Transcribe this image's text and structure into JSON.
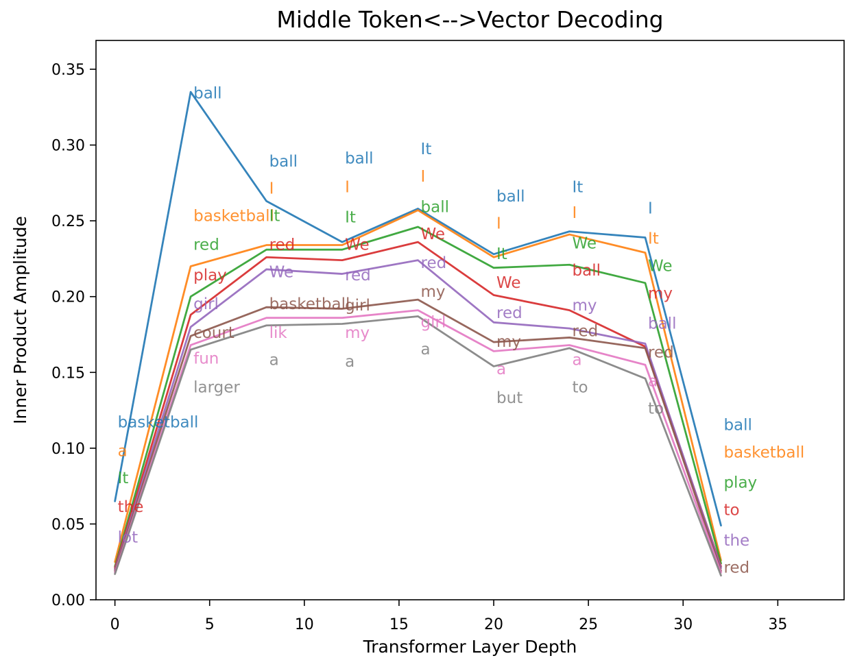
{
  "figure": {
    "title": "Middle Token<-->Vector Decoding",
    "xlabel": "Transformer Layer Depth",
    "ylabel": "Inner Product Amplitude"
  },
  "chart_data": {
    "type": "line",
    "title": "Middle Token<-->Vector Decoding",
    "xlabel": "Transformer Layer Depth",
    "ylabel": "Inner Product Amplitude",
    "grid": false,
    "legend": "none",
    "x": [
      0,
      4,
      8,
      12,
      16,
      20,
      24,
      28,
      32
    ],
    "xlim": [
      -1.0,
      38.5
    ],
    "ylim": [
      0,
      0.369
    ],
    "xticks": [
      "0",
      "5",
      "10",
      "15",
      "20",
      "25",
      "30",
      "35"
    ],
    "xtick_values": [
      0,
      5,
      10,
      15,
      20,
      25,
      30,
      35
    ],
    "yticks": [
      "0.00",
      "0.05",
      "0.10",
      "0.15",
      "0.20",
      "0.25",
      "0.30",
      "0.35"
    ],
    "ytick_values": [
      0.0,
      0.05,
      0.1,
      0.15,
      0.2,
      0.25,
      0.3,
      0.35
    ],
    "series": [
      {
        "name": "blue",
        "color": "#1f77b4",
        "values": [
          0.065,
          0.335,
          0.263,
          0.236,
          0.258,
          0.228,
          0.243,
          0.239,
          0.049
        ]
      },
      {
        "name": "orange",
        "color": "#ff7f0e",
        "values": [
          0.025,
          0.22,
          0.234,
          0.234,
          0.257,
          0.226,
          0.241,
          0.229,
          0.026
        ]
      },
      {
        "name": "green",
        "color": "#2ca02c",
        "values": [
          0.022,
          0.2,
          0.231,
          0.231,
          0.246,
          0.219,
          0.221,
          0.209,
          0.024
        ]
      },
      {
        "name": "red",
        "color": "#d62728",
        "values": [
          0.021,
          0.188,
          0.226,
          0.224,
          0.236,
          0.201,
          0.191,
          0.167,
          0.022
        ]
      },
      {
        "name": "purple",
        "color": "#9467bd",
        "values": [
          0.02,
          0.18,
          0.218,
          0.215,
          0.224,
          0.183,
          0.179,
          0.169,
          0.021
        ]
      },
      {
        "name": "brown",
        "color": "#8c564b",
        "values": [
          0.019,
          0.174,
          0.193,
          0.192,
          0.198,
          0.17,
          0.173,
          0.166,
          0.019
        ]
      },
      {
        "name": "pink",
        "color": "#e377c2",
        "values": [
          0.018,
          0.168,
          0.186,
          0.186,
          0.191,
          0.164,
          0.168,
          0.155,
          0.018
        ]
      },
      {
        "name": "gray",
        "color": "#7f7f7f",
        "values": [
          0.017,
          0.165,
          0.181,
          0.182,
          0.187,
          0.154,
          0.166,
          0.146,
          0.016
        ]
      }
    ],
    "annotations": [
      {
        "x": 0,
        "y": 0.117,
        "text": "basketball",
        "color": "#1f77b4"
      },
      {
        "x": 0,
        "y": 0.098,
        "text": "a",
        "color": "#ff7f0e"
      },
      {
        "x": 0,
        "y": 0.08,
        "text": "It",
        "color": "#2ca02c"
      },
      {
        "x": 0,
        "y": 0.061,
        "text": "the",
        "color": "#d62728"
      },
      {
        "x": 0,
        "y": 0.041,
        "text": "lot",
        "color": "#9467bd"
      },
      {
        "x": 4,
        "y": 0.334,
        "text": "ball",
        "color": "#1f77b4"
      },
      {
        "x": 4,
        "y": 0.253,
        "text": "basketball",
        "color": "#ff7f0e"
      },
      {
        "x": 4,
        "y": 0.234,
        "text": "red",
        "color": "#2ca02c"
      },
      {
        "x": 4,
        "y": 0.214,
        "text": "play",
        "color": "#d62728"
      },
      {
        "x": 4,
        "y": 0.195,
        "text": "girl",
        "color": "#9467bd"
      },
      {
        "x": 4,
        "y": 0.176,
        "text": "court",
        "color": "#8c564b"
      },
      {
        "x": 4,
        "y": 0.159,
        "text": "fun",
        "color": "#e377c2"
      },
      {
        "x": 4,
        "y": 0.14,
        "text": "larger",
        "color": "#7f7f7f"
      },
      {
        "x": 8,
        "y": 0.289,
        "text": "ball",
        "color": "#1f77b4"
      },
      {
        "x": 8,
        "y": 0.271,
        "text": "I",
        "color": "#ff7f0e"
      },
      {
        "x": 8,
        "y": 0.253,
        "text": "It",
        "color": "#2ca02c"
      },
      {
        "x": 8,
        "y": 0.234,
        "text": "red",
        "color": "#d62728"
      },
      {
        "x": 8,
        "y": 0.216,
        "text": "We",
        "color": "#9467bd"
      },
      {
        "x": 8,
        "y": 0.195,
        "text": "basketball",
        "color": "#8c564b"
      },
      {
        "x": 8,
        "y": 0.176,
        "text": "lik",
        "color": "#e377c2"
      },
      {
        "x": 8,
        "y": 0.158,
        "text": "a",
        "color": "#7f7f7f"
      },
      {
        "x": 12,
        "y": 0.291,
        "text": "ball",
        "color": "#1f77b4"
      },
      {
        "x": 12,
        "y": 0.272,
        "text": "I",
        "color": "#ff7f0e"
      },
      {
        "x": 12,
        "y": 0.252,
        "text": "It",
        "color": "#2ca02c"
      },
      {
        "x": 12,
        "y": 0.234,
        "text": "We",
        "color": "#d62728"
      },
      {
        "x": 12,
        "y": 0.214,
        "text": "red",
        "color": "#9467bd"
      },
      {
        "x": 12,
        "y": 0.194,
        "text": "girl",
        "color": "#8c564b"
      },
      {
        "x": 12,
        "y": 0.176,
        "text": "my",
        "color": "#e377c2"
      },
      {
        "x": 12,
        "y": 0.157,
        "text": "a",
        "color": "#7f7f7f"
      },
      {
        "x": 16,
        "y": 0.297,
        "text": "It",
        "color": "#1f77b4"
      },
      {
        "x": 16,
        "y": 0.279,
        "text": "I",
        "color": "#ff7f0e"
      },
      {
        "x": 16,
        "y": 0.259,
        "text": "ball",
        "color": "#2ca02c"
      },
      {
        "x": 16,
        "y": 0.241,
        "text": "We",
        "color": "#d62728"
      },
      {
        "x": 16,
        "y": 0.222,
        "text": "red",
        "color": "#9467bd"
      },
      {
        "x": 16,
        "y": 0.203,
        "text": "my",
        "color": "#8c564b"
      },
      {
        "x": 16,
        "y": 0.183,
        "text": "girl",
        "color": "#e377c2"
      },
      {
        "x": 16,
        "y": 0.165,
        "text": "a",
        "color": "#7f7f7f"
      },
      {
        "x": 20,
        "y": 0.266,
        "text": "ball",
        "color": "#1f77b4"
      },
      {
        "x": 20,
        "y": 0.248,
        "text": "I",
        "color": "#ff7f0e"
      },
      {
        "x": 20,
        "y": 0.228,
        "text": "It",
        "color": "#2ca02c"
      },
      {
        "x": 20,
        "y": 0.209,
        "text": "We",
        "color": "#d62728"
      },
      {
        "x": 20,
        "y": 0.189,
        "text": "red",
        "color": "#9467bd"
      },
      {
        "x": 20,
        "y": 0.17,
        "text": "my",
        "color": "#8c564b"
      },
      {
        "x": 20,
        "y": 0.152,
        "text": "a",
        "color": "#e377c2"
      },
      {
        "x": 20,
        "y": 0.133,
        "text": "but",
        "color": "#7f7f7f"
      },
      {
        "x": 24,
        "y": 0.272,
        "text": "It",
        "color": "#1f77b4"
      },
      {
        "x": 24,
        "y": 0.255,
        "text": "I",
        "color": "#ff7f0e"
      },
      {
        "x": 24,
        "y": 0.235,
        "text": "We",
        "color": "#2ca02c"
      },
      {
        "x": 24,
        "y": 0.217,
        "text": "ball",
        "color": "#d62728"
      },
      {
        "x": 24,
        "y": 0.194,
        "text": "my",
        "color": "#9467bd"
      },
      {
        "x": 24,
        "y": 0.177,
        "text": "red",
        "color": "#8c564b"
      },
      {
        "x": 24,
        "y": 0.158,
        "text": "a",
        "color": "#e377c2"
      },
      {
        "x": 24,
        "y": 0.14,
        "text": "to",
        "color": "#7f7f7f"
      },
      {
        "x": 28,
        "y": 0.258,
        "text": "I",
        "color": "#1f77b4"
      },
      {
        "x": 28,
        "y": 0.238,
        "text": "It",
        "color": "#ff7f0e"
      },
      {
        "x": 28,
        "y": 0.22,
        "text": "We",
        "color": "#2ca02c"
      },
      {
        "x": 28,
        "y": 0.202,
        "text": "my",
        "color": "#d62728"
      },
      {
        "x": 28,
        "y": 0.182,
        "text": "ball",
        "color": "#9467bd"
      },
      {
        "x": 28,
        "y": 0.163,
        "text": "red",
        "color": "#8c564b"
      },
      {
        "x": 28,
        "y": 0.144,
        "text": "a",
        "color": "#e377c2"
      },
      {
        "x": 28,
        "y": 0.126,
        "text": "to",
        "color": "#7f7f7f"
      },
      {
        "x": 32,
        "y": 0.115,
        "text": "ball",
        "color": "#1f77b4"
      },
      {
        "x": 32,
        "y": 0.097,
        "text": "basketball",
        "color": "#ff7f0e"
      },
      {
        "x": 32,
        "y": 0.077,
        "text": "play",
        "color": "#2ca02c"
      },
      {
        "x": 32,
        "y": 0.059,
        "text": "to",
        "color": "#d62728"
      },
      {
        "x": 32,
        "y": 0.039,
        "text": "the",
        "color": "#9467bd"
      },
      {
        "x": 32,
        "y": 0.021,
        "text": "red",
        "color": "#8c564b"
      }
    ],
    "style": {
      "frame_color": "#000000",
      "text_color": "#000000",
      "line_width": 2.8,
      "line_alpha": 0.9,
      "annotation_alpha": 0.85
    }
  }
}
